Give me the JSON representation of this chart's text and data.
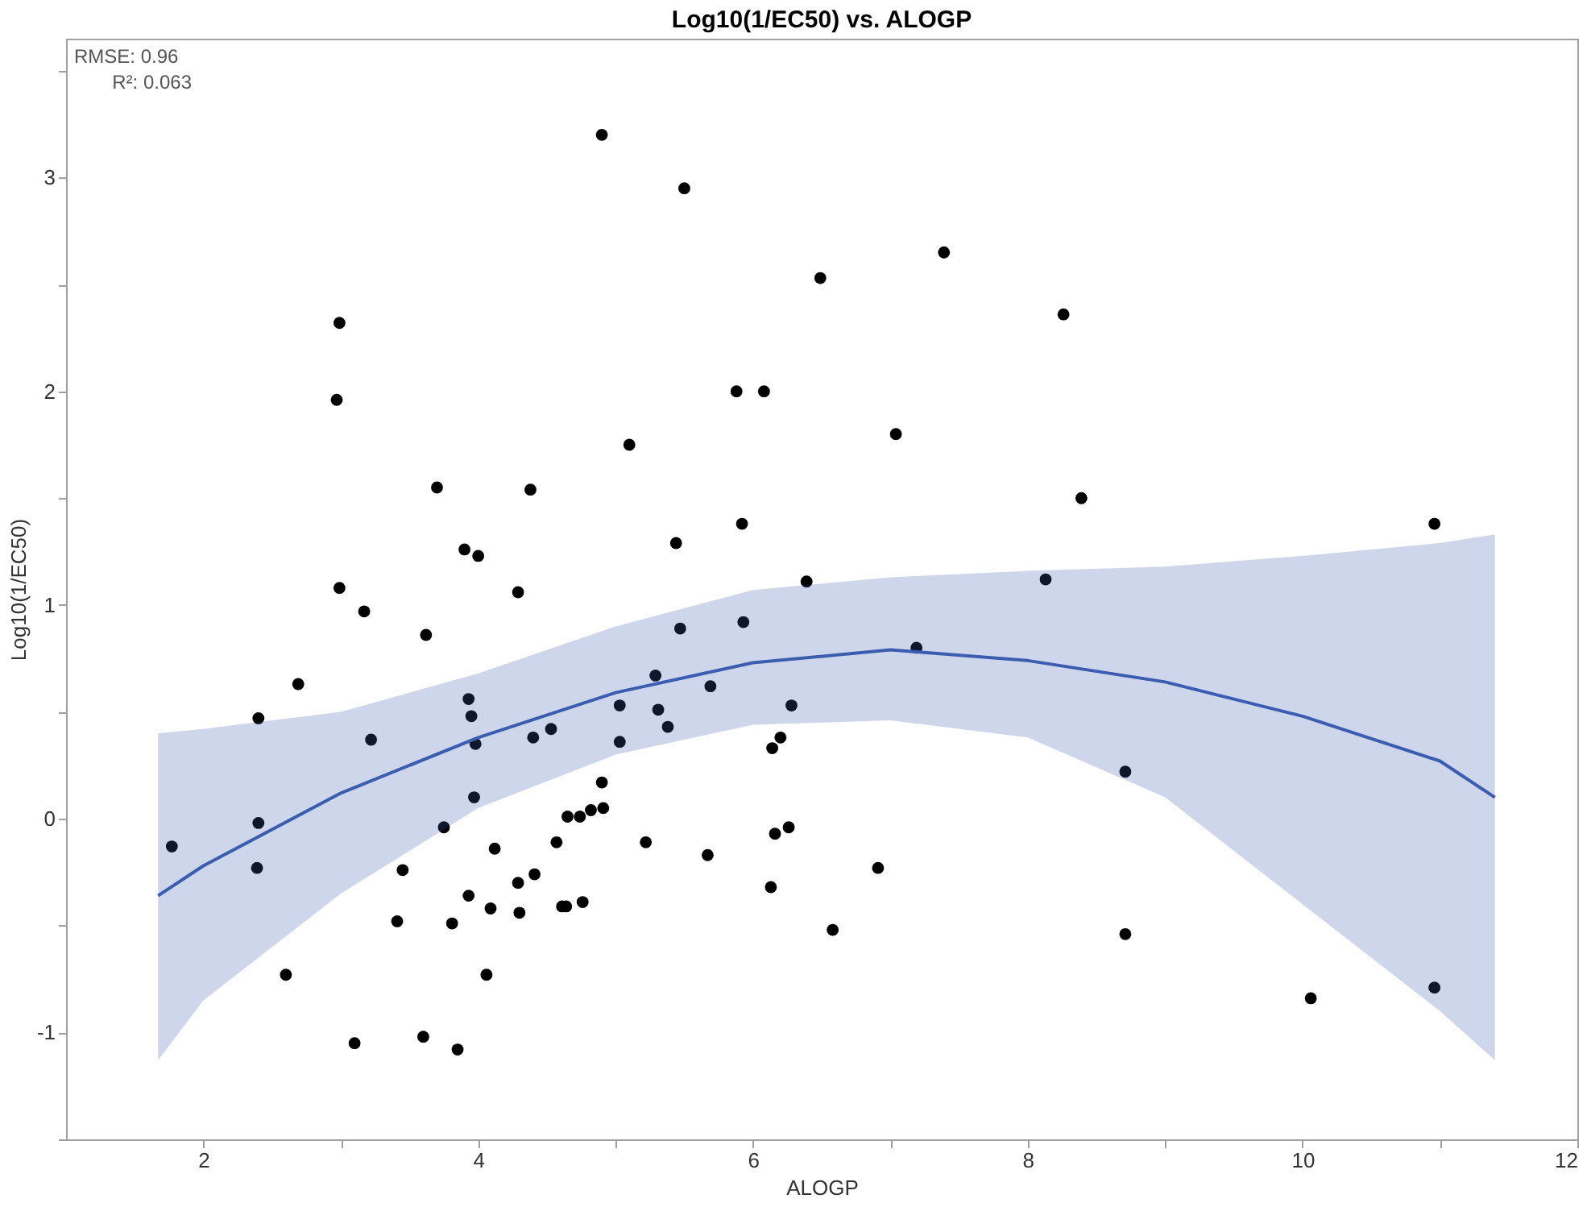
{
  "chart_data": {
    "type": "scatter",
    "title": "Log10(1/EC50) vs. ALOGP",
    "xlabel": "ALOGP",
    "ylabel": "Log10(1/EC50)",
    "xlim": [
      1,
      12
    ],
    "ylim": [
      -1.5,
      3.65
    ],
    "xticks": [
      2,
      {
        "value": 3,
        "label": null
      },
      4,
      {
        "value": 5,
        "label": null
      },
      6,
      {
        "value": 7,
        "label": null
      },
      8,
      {
        "value": 9,
        "label": null
      },
      10,
      {
        "value": 11,
        "label": null
      },
      12
    ],
    "yticks": [
      {
        "value": -1.5,
        "label": null
      },
      -1,
      {
        "value": -0.5,
        "label": null
      },
      0,
      {
        "value": 0.5,
        "label": null
      },
      1,
      {
        "value": 1.5,
        "label": null
      },
      2,
      {
        "value": 2.5,
        "label": null
      },
      3,
      {
        "value": 3.5,
        "label": null
      }
    ],
    "grid": false,
    "marker": "circle",
    "line_style": "solid",
    "annotations": [
      "RMSE: 0.96",
      "R²: 0.063"
    ],
    "series": [
      {
        "color": "#000000",
        "x": [
          1.77,
          2.4,
          2.4,
          2.39,
          2.6,
          2.69,
          2.99,
          2.97,
          2.99,
          3.1,
          3.17,
          3.22,
          3.45,
          3.41,
          3.7,
          3.62,
          3.75,
          3.81,
          3.85,
          3.6,
          3.9,
          4.0,
          3.93,
          3.95,
          3.98,
          3.97,
          3.93,
          4.09,
          4.06,
          4.12,
          4.29,
          4.3,
          4.41,
          4.4,
          4.29,
          4.9,
          5.5,
          7.39,
          6.49,
          5.88,
          6.08,
          5.1,
          7.04,
          4.38,
          5.92,
          5.44,
          6.39,
          8.13,
          5.47,
          5.93,
          7.19,
          5.29,
          5.69,
          5.03,
          5.31,
          5.38,
          6.28,
          5.03,
          6.2,
          6.14,
          4.53,
          4.9,
          4.91,
          4.82,
          4.65,
          4.74,
          4.57,
          5.22,
          5.67,
          6.16,
          6.26,
          6.13,
          6.91,
          6.58,
          4.61,
          4.64,
          4.76,
          8.26,
          8.39,
          10.96,
          8.71,
          8.71,
          10.06,
          10.96
        ],
        "values": [
          -0.13,
          0.47,
          -0.02,
          -0.23,
          -0.73,
          0.63,
          2.32,
          1.96,
          1.08,
          -1.05,
          0.97,
          0.37,
          -0.24,
          -0.48,
          1.55,
          0.86,
          -0.04,
          -0.49,
          -1.08,
          -1.02,
          1.26,
          1.23,
          0.56,
          0.48,
          0.35,
          0.1,
          -0.36,
          -0.42,
          -0.73,
          -0.14,
          -0.3,
          -0.44,
          -0.26,
          0.38,
          1.06,
          3.2,
          2.95,
          2.65,
          2.53,
          2.0,
          2.0,
          1.75,
          1.8,
          1.54,
          1.38,
          1.29,
          1.11,
          1.12,
          0.89,
          0.92,
          0.8,
          0.67,
          0.62,
          0.53,
          0.51,
          0.43,
          0.53,
          0.36,
          0.38,
          0.33,
          0.42,
          0.17,
          0.05,
          0.04,
          0.01,
          0.01,
          -0.11,
          -0.11,
          -0.17,
          -0.07,
          -0.04,
          -0.32,
          -0.23,
          -0.52,
          -0.41,
          -0.41,
          -0.39,
          2.36,
          1.5,
          1.38,
          0.22,
          -0.54,
          -0.84,
          -0.79
        ]
      },
      {
        "type": "line",
        "color": "#3a5db0",
        "marker": "none",
        "x": [
          1.67,
          2,
          3,
          4,
          5,
          6,
          7,
          8,
          9,
          10,
          11,
          11.4
        ],
        "values": [
          -0.36,
          -0.22,
          0.12,
          0.38,
          0.59,
          0.73,
          0.79,
          0.74,
          0.64,
          0.48,
          0.27,
          0.1
        ],
        "lower": [
          -1.13,
          -0.85,
          -0.35,
          0.05,
          0.3,
          0.44,
          0.46,
          0.38,
          0.1,
          -0.4,
          -0.9,
          -1.13
        ],
        "upper": [
          0.4,
          0.42,
          0.5,
          0.68,
          0.9,
          1.07,
          1.13,
          1.16,
          1.18,
          1.23,
          1.29,
          1.33
        ]
      }
    ]
  }
}
